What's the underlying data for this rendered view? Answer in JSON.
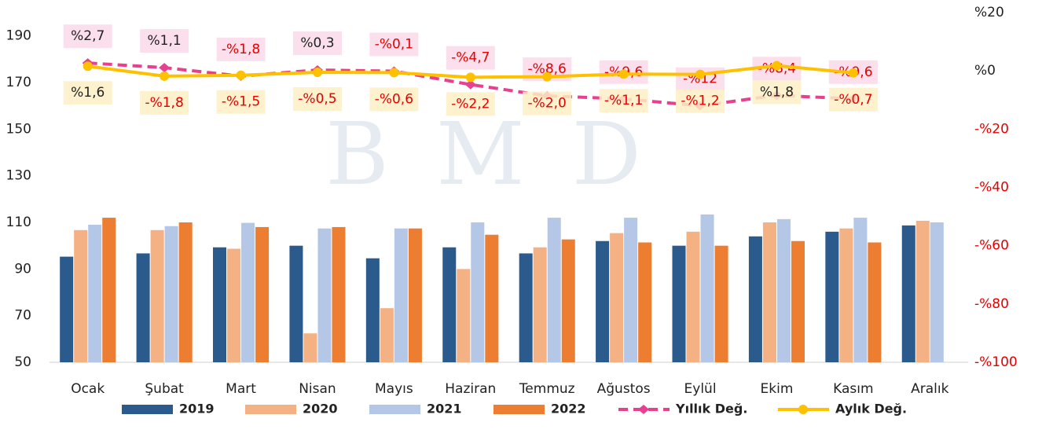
{
  "chart_data": {
    "type": "bar-line",
    "watermark": "BMD",
    "categories": [
      "Ocak",
      "Şubat",
      "Mart",
      "Nisan",
      "Mayıs",
      "Haziran",
      "Temmuz",
      "Ağustos",
      "Eylül",
      "Ekim",
      "Kasım",
      "Aralık"
    ],
    "ylim": [
      50,
      200
    ],
    "yticks": [
      50,
      70,
      90,
      110,
      130,
      150,
      170,
      190
    ],
    "y2lim": [
      -100,
      20
    ],
    "y2ticks": [
      {
        "value": 20,
        "label": "%20"
      },
      {
        "value": 0,
        "label": "%0"
      },
      {
        "value": -20,
        "label": "-%20"
      },
      {
        "value": -40,
        "label": "-%40"
      },
      {
        "value": -60,
        "label": "-%60"
      },
      {
        "value": -80,
        "label": "-%80"
      },
      {
        "value": -100,
        "label": "-%100"
      }
    ],
    "negative_color": "#e60000",
    "series": [
      {
        "name": "2019",
        "kind": "bar",
        "color": "#2b5b8c",
        "values": [
          95.3,
          96.7,
          99.3,
          100,
          94.6,
          99.3,
          96.7,
          102,
          100,
          104,
          106,
          108.7
        ]
      },
      {
        "name": "2020",
        "kind": "bar",
        "color": "#f4b183",
        "values": [
          106.7,
          106.7,
          98.7,
          62.4,
          73.2,
          90,
          99.3,
          105.4,
          106,
          110,
          107.4,
          110.7
        ]
      },
      {
        "name": "2021",
        "kind": "bar",
        "color": "#b4c7e7",
        "values": [
          109,
          108.4,
          109.8,
          107.4,
          107.4,
          110,
          112,
          112,
          113.4,
          111.4,
          112,
          110
        ]
      },
      {
        "name": "2022",
        "kind": "bar",
        "color": "#ed7d31",
        "values": [
          112,
          110,
          108,
          108,
          107.4,
          104.7,
          102.7,
          101.4,
          100,
          102,
          101.4,
          null
        ]
      },
      {
        "name": "Yıllık Değ.",
        "kind": "line",
        "axis": "y2",
        "color": "#e8408f",
        "dashed": true,
        "label_bg": "#fbd9ea",
        "values": [
          2.7,
          1.1,
          -1.8,
          0.3,
          -0.1,
          -4.7,
          -8.6,
          -9.6,
          -12,
          -8.4,
          -9.6,
          null
        ],
        "value_labels": [
          "%2,7",
          "%1,1",
          "-%1,8",
          "%0,3",
          "-%0,1",
          "-%4,7",
          "-%8,6",
          "-%9,6",
          "-%12",
          "-%8,4",
          "-%9,6",
          null
        ]
      },
      {
        "name": "Aylık Değ.",
        "kind": "line",
        "axis": "y2",
        "color": "#ffc000",
        "dashed": false,
        "label_bg": "#fdf0c4",
        "values": [
          1.6,
          -1.8,
          -1.5,
          -0.5,
          -0.6,
          -2.2,
          -2.0,
          -1.1,
          -1.2,
          1.8,
          -0.7,
          null
        ],
        "value_labels": [
          "%1,6",
          "-%1,8",
          "-%1,5",
          "-%0,5",
          "-%0,6",
          "-%2,2",
          "-%2,0",
          "-%1,1",
          "-%1,2",
          "%1,8",
          "-%0,7",
          null
        ]
      }
    ]
  }
}
